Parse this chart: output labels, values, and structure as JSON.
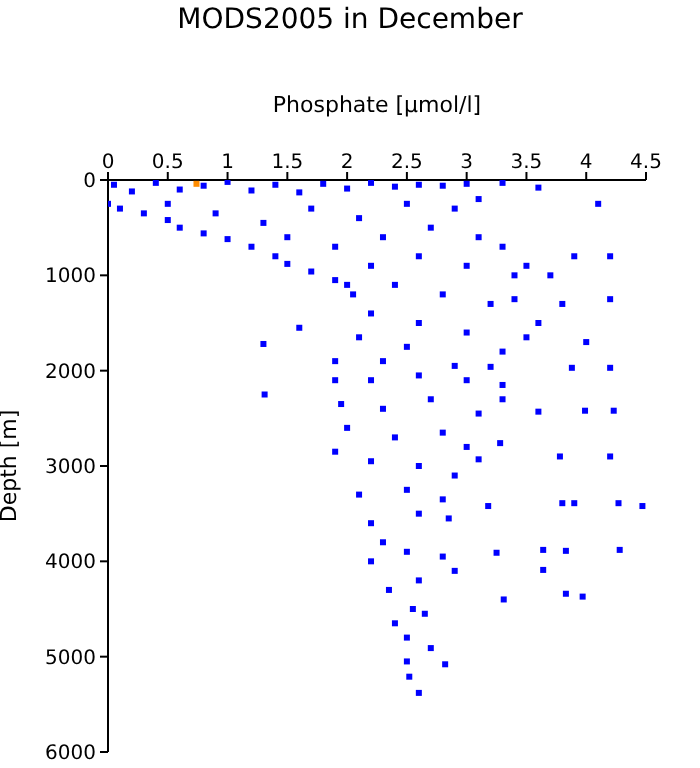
{
  "chart_data": {
    "type": "scatter",
    "title": "MODS2005 in December",
    "xlabel": "Phosphate [µmol/l]",
    "ylabel": "Depth [m]",
    "xlim": [
      0,
      4.5
    ],
    "xticks": [
      0,
      0.5,
      1,
      1.5,
      2,
      2.5,
      3,
      3.5,
      4,
      4.5
    ],
    "ylim": [
      6000,
      0
    ],
    "yticks": [
      0,
      1000,
      2000,
      3000,
      4000,
      5000,
      6000
    ],
    "marker": "square",
    "series": [
      {
        "color": "#0000ff",
        "x": [
          0.05,
          0.2,
          0.4,
          0.6,
          0.8,
          1.0,
          1.2,
          1.4,
          1.6,
          1.8,
          2.0,
          2.2,
          2.4,
          2.6,
          2.8,
          3.0,
          3.3,
          0.0,
          0.1,
          0.3,
          0.5,
          0.6,
          0.8,
          1.0,
          1.2,
          1.4,
          1.5,
          1.7,
          1.9,
          2.0,
          2.05,
          1.3,
          1.6,
          0.5,
          0.9,
          1.3,
          1.7,
          2.1,
          2.5,
          2.9,
          3.1,
          1.5,
          1.9,
          2.3,
          2.7,
          3.1,
          3.3,
          2.2,
          2.6,
          3.0,
          3.4,
          3.5,
          2.4,
          2.8,
          3.2,
          3.4,
          2.2,
          2.6,
          3.0,
          2.1,
          2.5,
          3.3,
          1.9,
          2.3,
          2.9,
          3.2,
          4.1,
          3.6,
          3.9,
          4.2,
          3.7,
          3.8,
          4.2,
          3.6,
          4.0,
          3.5,
          3.88,
          4.2,
          3.99,
          4.23,
          3.6,
          3.3,
          3.28,
          3.78,
          4.2,
          3.1,
          3.18,
          3.8,
          4.27,
          4.47,
          3.9,
          3.25,
          3.64,
          3.83,
          4.28,
          3.64,
          3.83,
          3.97,
          3.31,
          1.31,
          1.9,
          2.2,
          2.6,
          3.0,
          3.3,
          1.95,
          2.3,
          2.7,
          3.1,
          2.0,
          2.4,
          2.8,
          3.0,
          1.9,
          2.2,
          2.6,
          2.9,
          2.1,
          2.5,
          2.8,
          2.2,
          2.6,
          2.85,
          2.3,
          2.5,
          2.8,
          2.2,
          2.6,
          2.9,
          2.35,
          2.55,
          2.4,
          2.65,
          2.5,
          2.7,
          2.5,
          2.82,
          2.52,
          2.6
        ],
        "values": [
          50,
          120,
          30,
          100,
          60,
          20,
          110,
          50,
          130,
          40,
          90,
          30,
          70,
          50,
          60,
          40,
          30,
          250,
          300,
          350,
          420,
          500,
          560,
          620,
          700,
          800,
          880,
          960,
          1050,
          1100,
          1200,
          1720,
          1550,
          250,
          350,
          450,
          300,
          400,
          250,
          300,
          200,
          600,
          700,
          600,
          500,
          600,
          700,
          900,
          800,
          900,
          1000,
          900,
          1100,
          1200,
          1300,
          1250,
          1400,
          1500,
          1600,
          1650,
          1750,
          1800,
          1900,
          1900,
          1950,
          1960,
          250,
          80,
          800,
          800,
          1000,
          1300,
          1250,
          1500,
          1700,
          1650,
          1970,
          1970,
          2420,
          2420,
          2430,
          2300,
          2760,
          2900,
          2900,
          2930,
          3420,
          3390,
          3390,
          3420,
          3390,
          3910,
          3880,
          3890,
          3880,
          4090,
          4340,
          4370,
          4400,
          2250,
          2100,
          2100,
          2050,
          2100,
          2150,
          2350,
          2400,
          2300,
          2450,
          2600,
          2700,
          2650,
          2800,
          2850,
          2950,
          3000,
          3100,
          3300,
          3250,
          3350,
          3600,
          3500,
          3550,
          3800,
          3900,
          3950,
          4000,
          4200,
          4100,
          4300,
          4500,
          4650,
          4550,
          4800,
          4910,
          5050,
          5080,
          5210,
          5380
        ]
      },
      {
        "color": "#ff8c00",
        "x": [
          0.74
        ],
        "values": [
          40
        ]
      }
    ]
  }
}
